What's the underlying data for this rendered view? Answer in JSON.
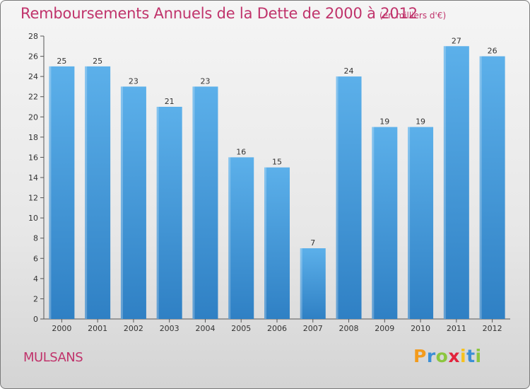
{
  "header": {
    "title": "Remboursements Annuels de la Dette de 2000 à 2012",
    "subtitle": "(en milliers d'€)"
  },
  "commune": "MULSANS",
  "logo": {
    "letters": [
      "P",
      "r",
      "o",
      "x",
      "i",
      "t",
      "i"
    ],
    "colors": [
      "#f39b1c",
      "#3c8fd6",
      "#8cc63f",
      "#e2233c",
      "#f7c21e",
      "#3c8fd6",
      "#8cc63f"
    ]
  },
  "colors": {
    "bar_light": "#5cb0ea",
    "bar_dark": "#2f80c4",
    "accent": "#c0336b"
  },
  "chart_data": {
    "type": "bar",
    "title": "Remboursements Annuels de la Dette de 2000 à 2012",
    "xlabel": "",
    "ylabel": "",
    "categories": [
      "2000",
      "2001",
      "2002",
      "2003",
      "2004",
      "2005",
      "2006",
      "2007",
      "2008",
      "2009",
      "2010",
      "2011",
      "2012"
    ],
    "values": [
      25,
      25,
      23,
      21,
      23,
      16,
      15,
      7,
      24,
      19,
      19,
      27,
      26
    ],
    "ylim": [
      0,
      28
    ],
    "yticks": [
      0,
      2,
      4,
      6,
      8,
      10,
      12,
      14,
      16,
      18,
      20,
      22,
      24,
      26,
      28
    ],
    "grid": false,
    "legend": "none"
  }
}
